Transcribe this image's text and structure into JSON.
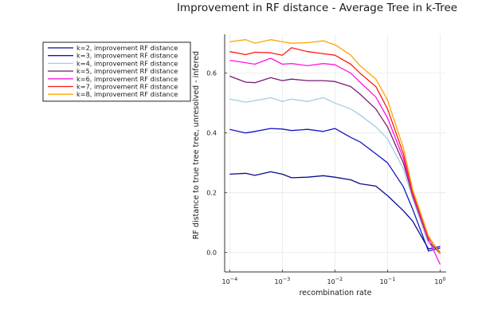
{
  "chart_data": {
    "type": "line",
    "title": "Improvement in RF distance - Average Tree in k-Tree",
    "xlabel": "recombination rate",
    "ylabel": "RF distance to true tree tree, unresolved - infered",
    "xscale": "log10",
    "xlim": [
      8e-05,
      1.3
    ],
    "ylim": [
      -0.065,
      0.73
    ],
    "grid": true,
    "legend_position": "top-left, outside plot area",
    "x_ticks": [
      {
        "value": 0.0001,
        "base": "10",
        "exp": "−4"
      },
      {
        "value": 0.001,
        "base": "10",
        "exp": "−3"
      },
      {
        "value": 0.01,
        "base": "10",
        "exp": "−2"
      },
      {
        "value": 0.1,
        "base": "10",
        "exp": "−1"
      },
      {
        "value": 1,
        "base": "10",
        "exp": "0"
      }
    ],
    "y_ticks": [
      {
        "value": 0.0,
        "label": "0.0"
      },
      {
        "value": 0.2,
        "label": "0.2"
      },
      {
        "value": 0.4,
        "label": "0.4"
      },
      {
        "value": 0.6,
        "label": "0.6"
      }
    ],
    "x": [
      0.0001,
      0.0002,
      0.0003,
      0.0006,
      0.001,
      0.0015,
      0.003,
      0.006,
      0.01,
      0.02,
      0.03,
      0.06,
      0.1,
      0.2,
      0.3,
      0.6,
      1.0
    ],
    "series": [
      {
        "name": "k=2, improvement RF distance",
        "color": "#0b0b8f",
        "values": [
          0.262,
          0.265,
          0.258,
          0.27,
          0.262,
          0.25,
          0.252,
          0.257,
          0.252,
          0.243,
          0.23,
          0.222,
          0.19,
          0.14,
          0.105,
          0.012,
          0.02
        ]
      },
      {
        "name": "k=3, improvement RF distance",
        "color": "#1515c4",
        "values": [
          0.412,
          0.4,
          0.405,
          0.415,
          0.413,
          0.408,
          0.412,
          0.405,
          0.415,
          0.385,
          0.37,
          0.33,
          0.3,
          0.22,
          0.145,
          0.005,
          0.015
        ]
      },
      {
        "name": "k=4, improvement RF distance",
        "color": "#a4cde6",
        "values": [
          0.513,
          0.503,
          0.508,
          0.518,
          0.505,
          0.513,
          0.505,
          0.518,
          0.5,
          0.48,
          0.46,
          0.42,
          0.38,
          0.28,
          0.18,
          0.03,
          0.0
        ]
      },
      {
        "name": "k=5, improvement RF distance",
        "color": "#7a1a72",
        "values": [
          0.59,
          0.57,
          0.568,
          0.585,
          0.575,
          0.58,
          0.575,
          0.575,
          0.572,
          0.555,
          0.53,
          0.48,
          0.42,
          0.3,
          0.19,
          0.04,
          -0.005
        ]
      },
      {
        "name": "k=6, improvement RF distance",
        "color": "#ff14e0",
        "values": [
          0.643,
          0.635,
          0.63,
          0.65,
          0.63,
          0.632,
          0.625,
          0.632,
          0.628,
          0.6,
          0.57,
          0.52,
          0.45,
          0.315,
          0.195,
          0.045,
          -0.04
        ]
      },
      {
        "name": "k=7, improvement RF distance",
        "color": "#ff1a1a",
        "values": [
          0.672,
          0.662,
          0.67,
          0.668,
          0.66,
          0.685,
          0.672,
          0.665,
          0.66,
          0.63,
          0.6,
          0.555,
          0.48,
          0.33,
          0.2,
          0.05,
          0.0
        ]
      },
      {
        "name": "k=8, improvement RF distance",
        "color": "#ffa500",
        "values": [
          0.705,
          0.712,
          0.7,
          0.712,
          0.705,
          0.7,
          0.702,
          0.708,
          0.695,
          0.66,
          0.625,
          0.58,
          0.51,
          0.35,
          0.21,
          0.055,
          -0.005
        ]
      }
    ]
  }
}
